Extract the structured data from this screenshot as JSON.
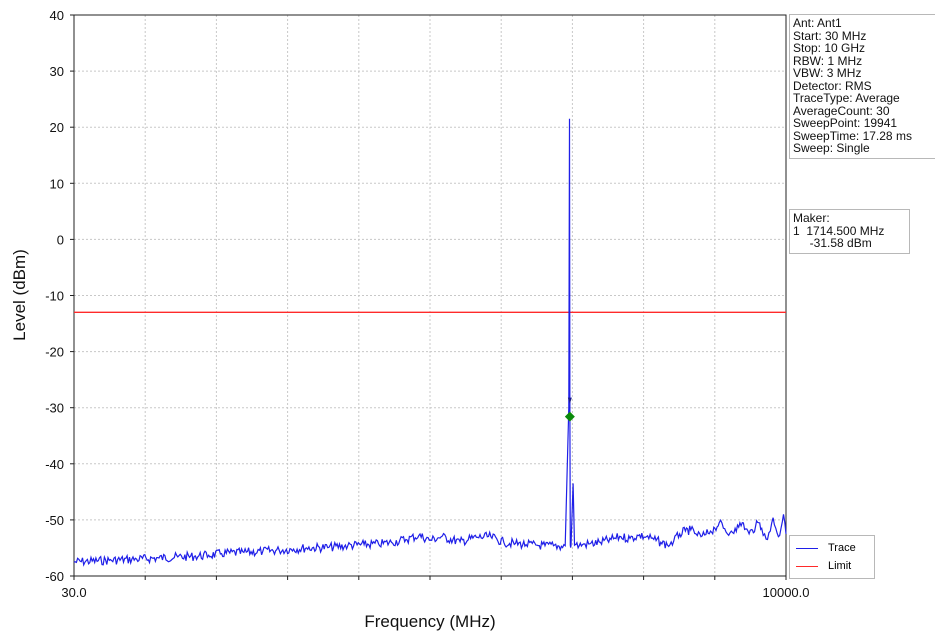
{
  "colors": {
    "trace": "#1f1fe8",
    "limit": "#ff2a2a",
    "marker": "#0a8a0a",
    "grid": "#c8c8c8"
  },
  "settings_lines": [
    "Ant: Ant1",
    "Start: 30 MHz",
    "Stop: 10 GHz",
    "RBW: 1 MHz",
    "VBW: 3 MHz",
    "Detector: RMS",
    "TraceType: Average",
    "AverageCount: 30",
    "SweepPoint: 19941",
    "SweepTime: 17.28 ms",
    "Sweep: Single"
  ],
  "marker_lines": [
    "Maker:",
    "1  1714.500 MHz",
    "     -31.58 dBm"
  ],
  "legend": [
    {
      "label": "Trace",
      "color": "#1f1fe8"
    },
    {
      "label": "Limit",
      "color": "#ff2a2a"
    }
  ],
  "chart_data": {
    "type": "line",
    "title": "",
    "xlabel": "Frequency (MHz)",
    "ylabel": "Level (dBm)",
    "x_scale": "log",
    "xlim": [
      30,
      10000
    ],
    "ylim": [
      -60,
      40
    ],
    "x_tick_labels": [
      "30.0",
      "10000.0"
    ],
    "y_ticks": [
      40,
      30,
      20,
      10,
      0,
      -10,
      -20,
      -30,
      -40,
      -50,
      -60
    ],
    "grid": true,
    "legend_position": "bottom-right",
    "limit": {
      "name": "Limit",
      "value": -13
    },
    "marker": {
      "x": 1714.5,
      "y": -31.58
    },
    "series": [
      {
        "name": "Trace",
        "x": [
          30,
          40,
          50,
          60,
          70,
          80,
          90,
          100,
          120,
          140,
          160,
          180,
          200,
          240,
          280,
          320,
          360,
          400,
          450,
          500,
          550,
          600,
          700,
          800,
          900,
          1000,
          1100,
          1200,
          1300,
          1400,
          1500,
          1600,
          1650,
          1700,
          1710,
          1714.5,
          1720,
          1730,
          1760,
          1780,
          1800,
          1850,
          1900,
          2000,
          2200,
          2400,
          2600,
          2800,
          3000,
          3200,
          3400,
          3600,
          3800,
          4000,
          4200,
          4400,
          4600,
          4800,
          5000,
          5200,
          5400,
          5600,
          5800,
          6000,
          6200,
          6400,
          6600,
          6800,
          7000,
          7200,
          7400,
          7600,
          7800,
          8000,
          8200,
          8400,
          8600,
          8800,
          9000,
          9200,
          9400,
          9600,
          9800,
          10000
        ],
        "y": [
          -57.5,
          -57.2,
          -57.0,
          -56.8,
          -56.6,
          -56.5,
          -56.3,
          -56.0,
          -55.8,
          -55.6,
          -55.4,
          -55.2,
          -55.0,
          -54.9,
          -54.6,
          -54.4,
          -54.3,
          -54.0,
          -53.5,
          -52.8,
          -53.6,
          -53.0,
          -53.9,
          -53.1,
          -53.0,
          -54.0,
          -54.2,
          -54.4,
          -54.5,
          -54.6,
          -54.6,
          -54.7,
          -54.6,
          -30.0,
          21.5,
          -31.58,
          -54.5,
          -54.6,
          -43.5,
          -54.5,
          -54.4,
          -54.6,
          -54.4,
          -54.3,
          -54.0,
          -53.5,
          -53.0,
          -53.3,
          -52.8,
          -53.0,
          -53.5,
          -54.0,
          -54.5,
          -53.8,
          -52.5,
          -52.0,
          -51.8,
          -52.5,
          -53.0,
          -52.6,
          -52.0,
          -51.5,
          -50.5,
          -51.5,
          -52.5,
          -52.0,
          -51.5,
          -51.3,
          -50.5,
          -51.6,
          -52.5,
          -51.8,
          -51.2,
          -50.5,
          -51.5,
          -52.5,
          -53.5,
          -52.0,
          -49.6,
          -51.5,
          -53.0,
          -51.5,
          -49.0,
          -52.5
        ]
      }
    ]
  }
}
